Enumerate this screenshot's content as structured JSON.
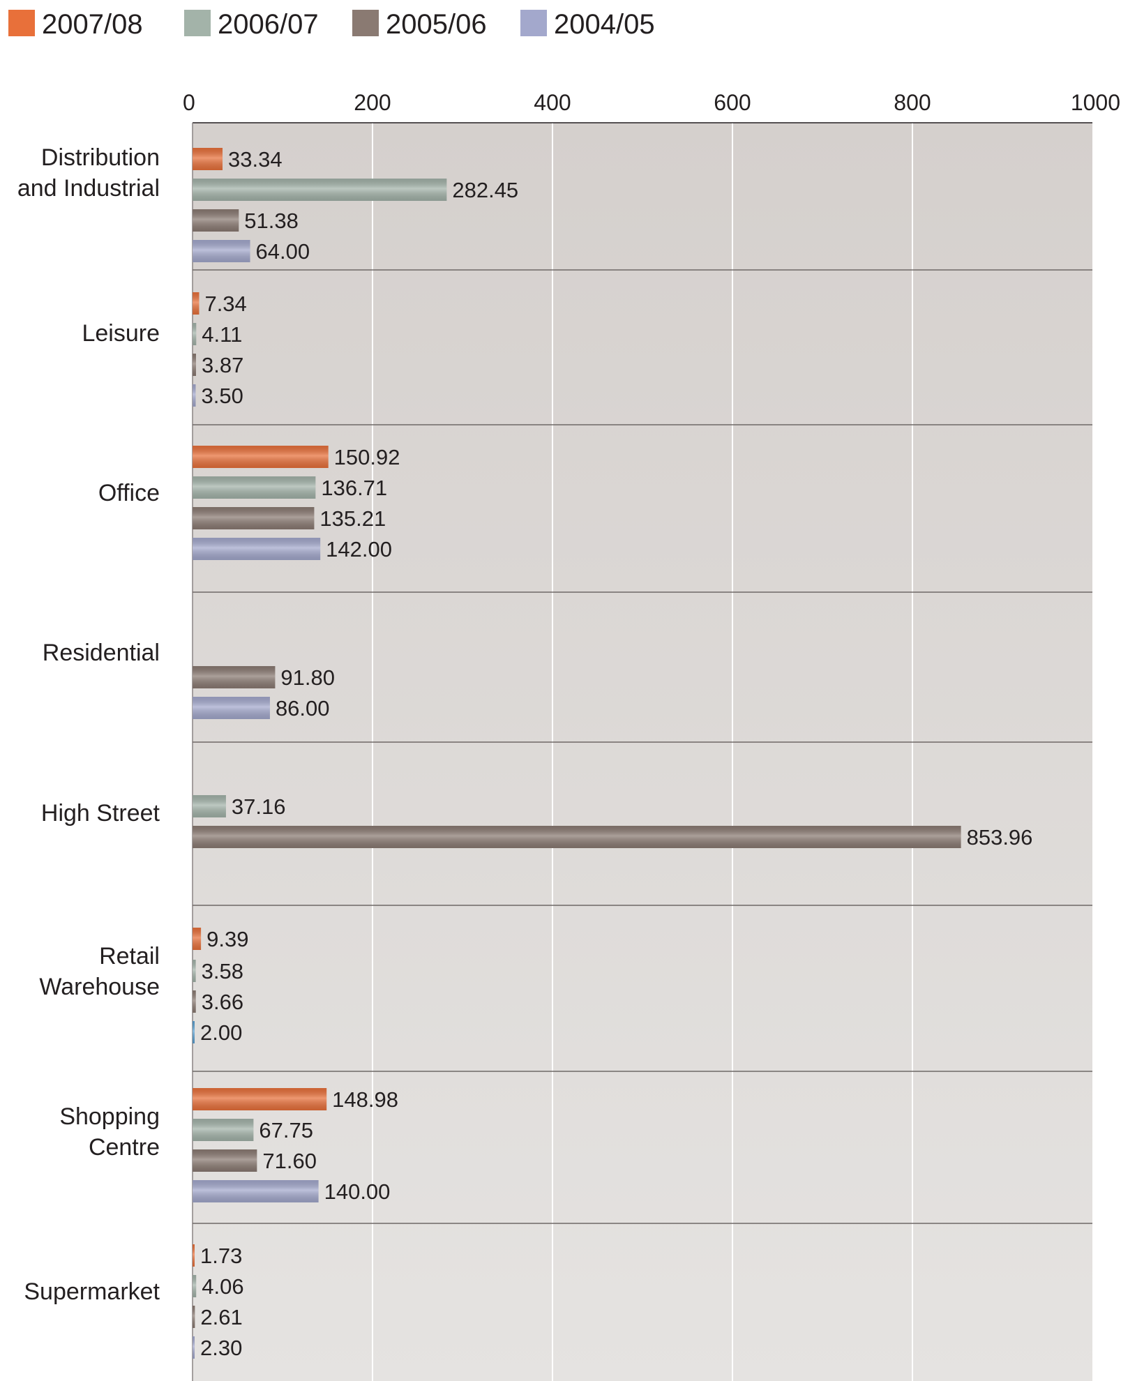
{
  "chart_data": {
    "type": "bar",
    "orientation": "horizontal",
    "title": "",
    "xlabel": "",
    "ylabel": "",
    "xlim": [
      0,
      1000
    ],
    "x_ticks": [
      "0",
      "200",
      "400",
      "600",
      "800",
      "1000"
    ],
    "grid": true,
    "legend_position": "top-left",
    "categories": [
      [
        "Distribution",
        "and Industrial"
      ],
      [
        "Leisure"
      ],
      [
        "Office"
      ],
      [
        "Residential"
      ],
      [
        "High Street"
      ],
      [
        "Retail",
        "Warehouse"
      ],
      [
        "Shopping",
        "Centre"
      ],
      [
        "Supermarket"
      ]
    ],
    "series": [
      {
        "name": "2007/08",
        "color": "#e8703a",
        "values": [
          33.34,
          7.34,
          150.92,
          null,
          null,
          9.39,
          148.98,
          1.73
        ],
        "labels": [
          "33.34",
          "7.34",
          "150.92",
          null,
          null,
          "9.39",
          "148.98",
          "1.73"
        ]
      },
      {
        "name": "2006/07",
        "color": "#a3b3a9",
        "values": [
          282.45,
          4.11,
          136.71,
          null,
          37.16,
          3.58,
          67.75,
          4.06
        ],
        "labels": [
          "282.45",
          "4.11",
          "136.71",
          null,
          "37.16",
          "3.58",
          "67.75",
          "4.06"
        ]
      },
      {
        "name": "2005/06",
        "color": "#8a7a72",
        "values": [
          51.38,
          3.87,
          135.21,
          91.8,
          853.96,
          3.66,
          71.6,
          2.61
        ],
        "labels": [
          "51.38",
          "3.87",
          "135.21",
          "91.80",
          "853.96",
          "3.66",
          "71.60",
          "2.61"
        ]
      },
      {
        "name": "2004/05",
        "color": "#a3a8cc",
        "values": [
          64.0,
          3.5,
          142.0,
          86.0,
          null,
          2.0,
          140.0,
          2.3
        ],
        "labels": [
          "64.00",
          "3.50",
          "142.00",
          "86.00",
          null,
          "2.00",
          "140.00",
          "2.30"
        ]
      }
    ],
    "highlight_colors": {
      "retail_warehouse_2004_05": "#5a9fd0"
    }
  }
}
